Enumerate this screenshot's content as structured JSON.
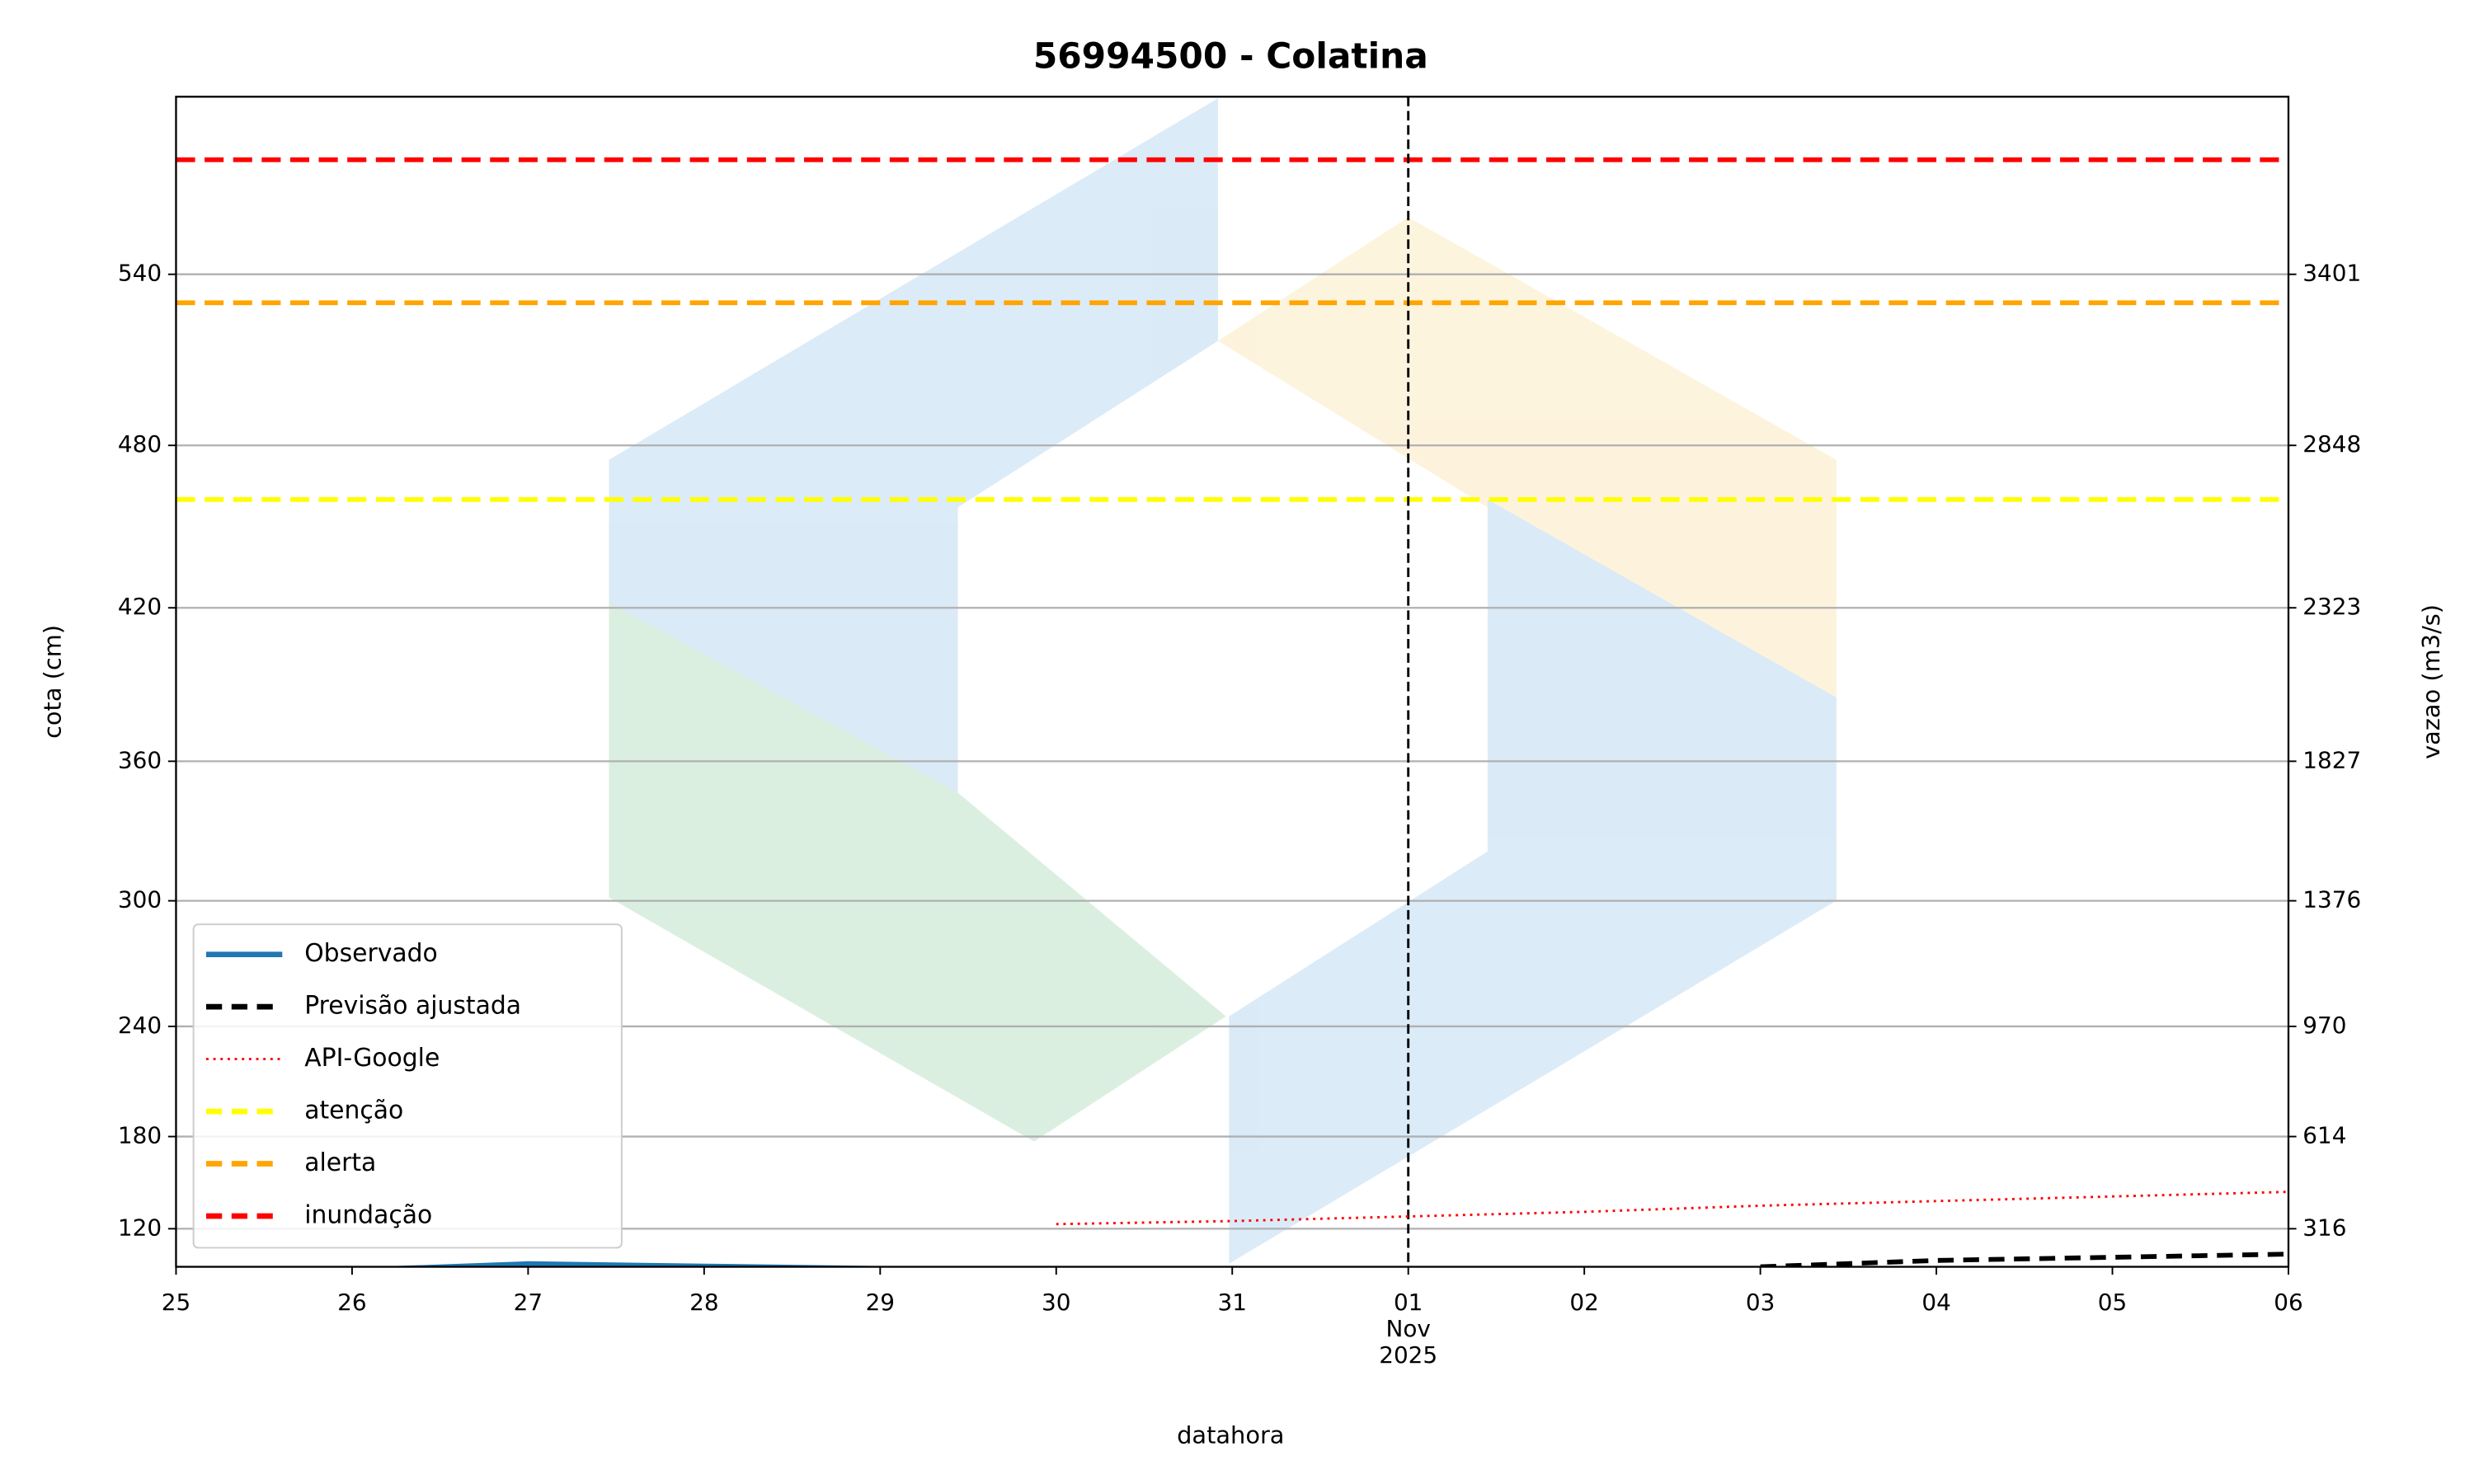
{
  "chart_data": {
    "type": "line",
    "title": "56994500 - Colatina",
    "xlabel": "datahora",
    "ylabel": "cota (cm)",
    "y2label": "vazao (m3/s)",
    "xlim": [
      "2025-10-25",
      "2025-11-06"
    ],
    "xticks": [
      {
        "value": "2025-10-25",
        "label": "25"
      },
      {
        "value": "2025-10-26",
        "label": "26"
      },
      {
        "value": "2025-10-27",
        "label": "27"
      },
      {
        "value": "2025-10-28",
        "label": "28"
      },
      {
        "value": "2025-10-29",
        "label": "29"
      },
      {
        "value": "2025-10-30",
        "label": "30"
      },
      {
        "value": "2025-10-31",
        "label": "31"
      },
      {
        "value": "2025-11-01",
        "label": "01\nNov\n2025"
      },
      {
        "value": "2025-11-02",
        "label": "02"
      },
      {
        "value": "2025-11-03",
        "label": "03"
      },
      {
        "value": "2025-11-04",
        "label": "04"
      },
      {
        "value": "2025-11-05",
        "label": "05"
      },
      {
        "value": "2025-11-06",
        "label": "06"
      }
    ],
    "ylim": [
      96,
      602
    ],
    "yticks": [
      120,
      180,
      240,
      300,
      360,
      420,
      480,
      540
    ],
    "y2lim": [
      193,
      3975
    ],
    "y2ticks": [
      316,
      614,
      970,
      1376,
      1827,
      2323,
      2848,
      3401
    ],
    "grid": true,
    "vline": "2025-11-01",
    "legend": "lower left",
    "series": [
      {
        "name": "Observado",
        "color": "#1f77b4",
        "style": "solid",
        "x": [
          "2025-10-25",
          "2025-10-26",
          "2025-10-27",
          "2025-10-28",
          "2025-10-29",
          "2025-10-30",
          "2025-10-31"
        ],
        "values": [
          94,
          94,
          98,
          96.5,
          95,
          94,
          94
        ]
      },
      {
        "name": "Previsão ajustada",
        "color": "#000000",
        "style": "dashed",
        "x": [
          "2025-11-03",
          "2025-11-04",
          "2025-11-05",
          "2025-11-06"
        ],
        "values": [
          96,
          100,
          102,
          104
        ]
      },
      {
        "name": "API-Google",
        "color": "#ff0000",
        "style": "dotted",
        "x": [
          "2025-10-30",
          "2025-10-31",
          "2025-11-01",
          "2025-11-02",
          "2025-11-03",
          "2025-11-04",
          "2025-11-05",
          "2025-11-06"
        ],
        "values": [
          123,
          125,
          128,
          131,
          135,
          138,
          141,
          144
        ]
      }
    ],
    "thresholds": [
      {
        "name": "atenção",
        "color": "#ffff00",
        "value": 460
      },
      {
        "name": "alerta",
        "color": "#ffa500",
        "value": 530
      },
      {
        "name": "inundação",
        "color": "#ff0000",
        "value": 580
      }
    ]
  }
}
